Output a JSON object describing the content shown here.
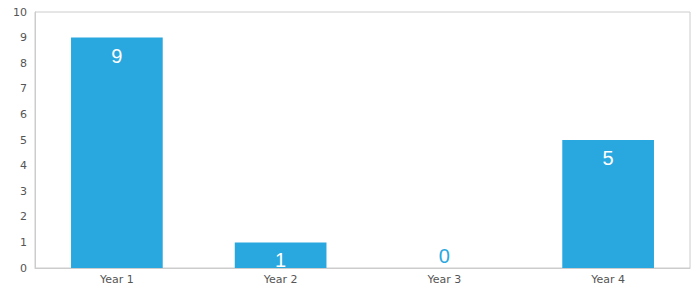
{
  "chart_data": {
    "type": "bar",
    "categories": [
      "Year 1",
      "Year 2",
      "Year 3",
      "Year 4"
    ],
    "values": [
      9,
      1,
      0,
      5
    ],
    "color": "#29a8e0",
    "ylim": [
      0,
      10
    ],
    "yticks": [
      0,
      1,
      2,
      3,
      4,
      5,
      6,
      7,
      8,
      9,
      10
    ],
    "grid": false,
    "data_labels": true
  }
}
